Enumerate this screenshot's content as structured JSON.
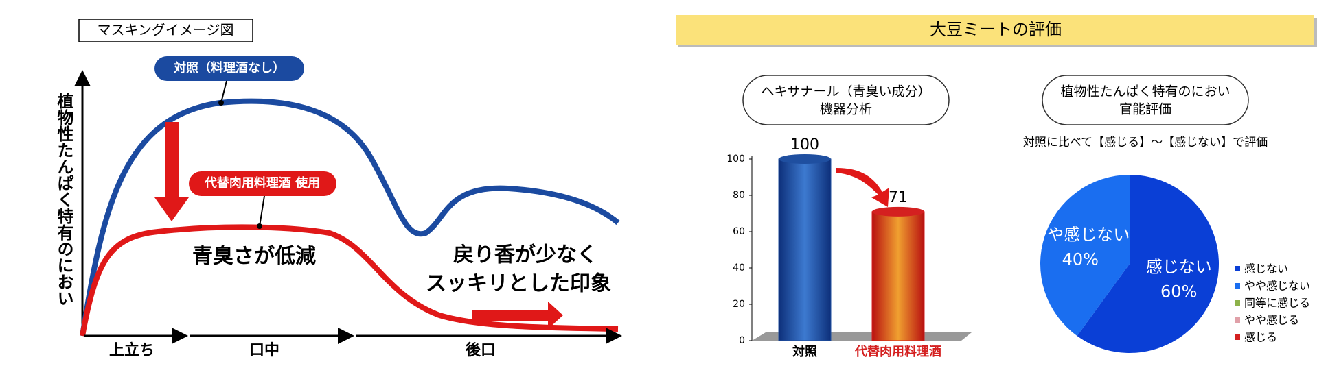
{
  "diagram": {
    "title": "マスキングイメージ図",
    "y_label": "植物性たんぱく特有のにおい",
    "control_label": "対照（料理酒なし）",
    "product_label": "代替肉用料理酒 使用",
    "note_1": "青臭さが低減",
    "note_2": [
      "戻り香が少なく",
      "スッキリとした印象"
    ],
    "phases": [
      "上立ち",
      "口中",
      "後口"
    ]
  },
  "section_title": "大豆ミートの評価",
  "chart_data": [
    {
      "type": "bar",
      "title": "ヘキサナール（青臭い成分）",
      "subtitle": "機器分析",
      "categories": [
        "対照",
        "代替肉用料理酒"
      ],
      "values": [
        100,
        71
      ],
      "colors": [
        "#1f4fa0",
        "#d42020"
      ],
      "label_colors": [
        "#000000",
        "#d42020"
      ],
      "ylim": [
        0,
        100
      ],
      "yticks": [
        0,
        20,
        40,
        60,
        80,
        100
      ]
    },
    {
      "type": "pie",
      "title": "植物性たんぱく特有のにおい",
      "subtitle": "官能評価",
      "note": "対照に比べて【感じる】～【感じない】で評価",
      "categories": [
        "感じない",
        "やや感じない",
        "同等に感じる",
        "やや感じる",
        "感じる"
      ],
      "values": [
        60,
        40,
        0,
        0,
        0
      ],
      "value_labels": [
        "60%",
        "40%",
        null,
        null,
        null
      ],
      "colors": [
        "#0a3fd6",
        "#1a6ef0",
        "#8db24a",
        "#e0a0a8",
        "#d42020"
      ]
    }
  ]
}
